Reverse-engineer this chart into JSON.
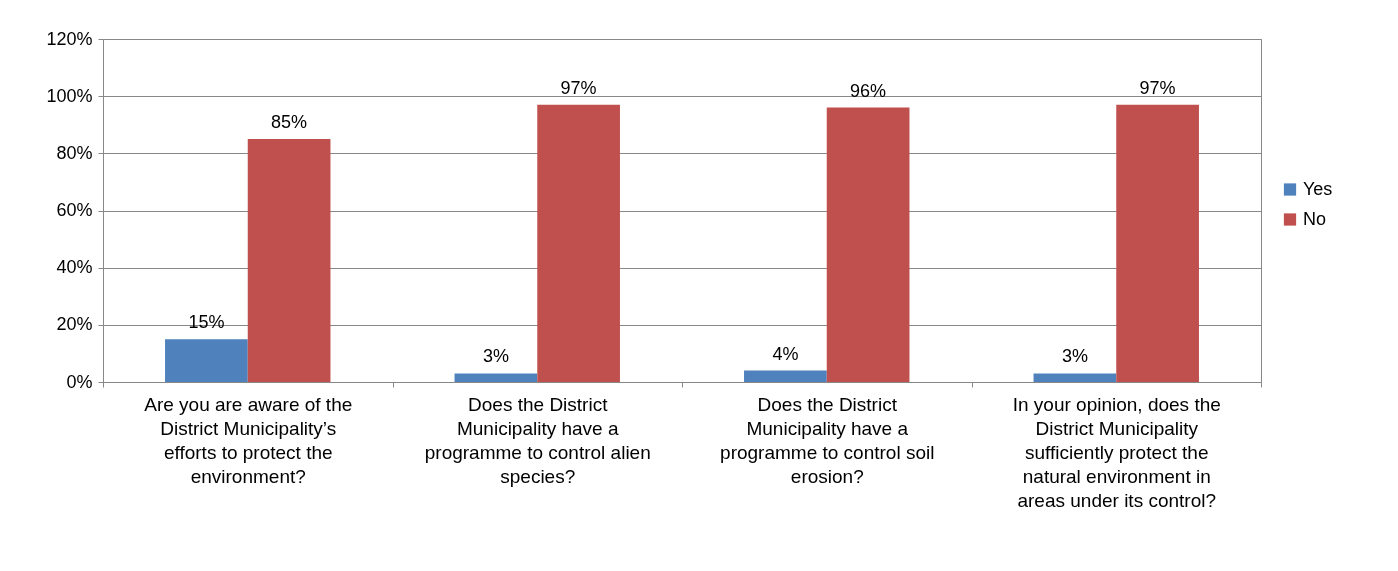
{
  "chart_data": {
    "type": "bar",
    "categories": [
      "Are you are aware of the District Municipality’s efforts to protect the environment?",
      "Does the District Municipality have a programme to control alien species?",
      "Does the District Municipality have a programme to control soil erosion?",
      "In your opinion, does the District Municipality sufficiently protect the natural environment in areas under its control?"
    ],
    "series": [
      {
        "name": "Yes",
        "color": "#4f81bd",
        "values": [
          15,
          3,
          4,
          3
        ],
        "value_labels": [
          "15%",
          "3%",
          "4%",
          "3%"
        ]
      },
      {
        "name": "No",
        "color": "#c0504d",
        "values": [
          85,
          97,
          96,
          97
        ],
        "value_labels": [
          "85%",
          "97%",
          "96%",
          "97%"
        ]
      }
    ],
    "ylim": [
      0,
      120
    ],
    "yticks": [
      {
        "value": 0,
        "label": "0%"
      },
      {
        "value": 20,
        "label": "20%"
      },
      {
        "value": 40,
        "label": "40%"
      },
      {
        "value": 60,
        "label": "60%"
      },
      {
        "value": 80,
        "label": "80%"
      },
      {
        "value": 100,
        "label": "100%"
      },
      {
        "value": 120,
        "label": "120%"
      }
    ],
    "grid": "y",
    "legend": "right"
  }
}
